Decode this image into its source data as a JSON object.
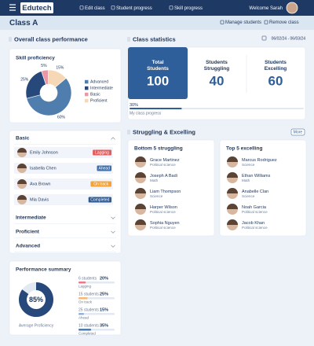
{
  "header": {
    "logo": "Edutech",
    "nav": [
      "Edit class",
      "Student progress",
      "Skill progress"
    ],
    "welcome": "Welcome Sarah"
  },
  "class_bar": {
    "title": "Class A",
    "actions": [
      "Manage students",
      "Remove class"
    ]
  },
  "overall": {
    "heading": "Overall class performance",
    "skill_chart": {
      "type": "pie",
      "title": "Skill proficiency",
      "categories": [
        "Advanced",
        "Intermediate",
        "Basic",
        "Proficient"
      ],
      "values": [
        60,
        25,
        5,
        15
      ],
      "value_labels": [
        "60%",
        "25%",
        "5%",
        "15%"
      ],
      "colors": [
        "#4f7eae",
        "#27487a",
        "#ec97a6",
        "#f7d8b6"
      ]
    },
    "levels": [
      {
        "name": "Basic",
        "expanded": true,
        "students": [
          {
            "name": "Emily Johnson",
            "status": "Lagging",
            "color": "#e35d5d"
          },
          {
            "name": "Isabella Chen",
            "status": "Ahead",
            "color": "#3e6ea8"
          },
          {
            "name": "Ava Brown",
            "status": "On track",
            "color": "#f2a33a"
          },
          {
            "name": "Mia Davis",
            "status": "Completed",
            "color": "#2f5b94"
          }
        ]
      },
      {
        "name": "Intermediate"
      },
      {
        "name": "Proficient"
      },
      {
        "name": "Advanced"
      }
    ],
    "summary": {
      "title": "Performance summary",
      "value": 85,
      "value_label": "85%",
      "caption": "Average Proficiency",
      "color": "#27487a",
      "rows": [
        {
          "count": "6 students",
          "value": 20,
          "label": "20%",
          "status": "Lagging",
          "color": "#e9798b"
        },
        {
          "count": "15 students",
          "value": 25,
          "label": "25%",
          "status": "On track",
          "color": "#f5b878"
        },
        {
          "count": "25 students",
          "value": 15,
          "label": "15%",
          "status": "Ahead",
          "color": "#8fb1da"
        },
        {
          "count": "10 students",
          "value": 35,
          "label": "35%",
          "status": "Completed",
          "color": "#4f7eae"
        }
      ]
    }
  },
  "stats": {
    "heading": "Class statistics",
    "date_range": "06/02/24 - 06/03/24",
    "cards": [
      {
        "label": "Total Students",
        "value": 100
      },
      {
        "label": "Students Struggling",
        "value": 40
      },
      {
        "label": "Students Excelling",
        "value": 60
      }
    ],
    "progress": {
      "value": 30,
      "label": "30%",
      "caption": "My class progress"
    }
  },
  "lists": {
    "heading": "Struggling & Excelling",
    "more": "More",
    "groups": [
      {
        "title": "Bottom 5 struggling",
        "students": [
          {
            "name": "Grace Martinez",
            "subject": "Political science"
          },
          {
            "name": "Joseph A Badi",
            "subject": "Math"
          },
          {
            "name": "Liam Thompson",
            "subject": "Science"
          },
          {
            "name": "Harper Wilson",
            "subject": "Political science"
          },
          {
            "name": "Sophia Nguyen",
            "subject": "Political science"
          }
        ]
      },
      {
        "title": "Top 5 excelling",
        "students": [
          {
            "name": "Marcus Rodriguez",
            "subject": "Science"
          },
          {
            "name": "Ethan Williams",
            "subject": "Math"
          },
          {
            "name": "Anabelle Clan",
            "subject": "Science"
          },
          {
            "name": "Noah Garcia",
            "subject": "Political science"
          },
          {
            "name": "Jacob Khan",
            "subject": "Political science"
          }
        ]
      }
    ]
  }
}
